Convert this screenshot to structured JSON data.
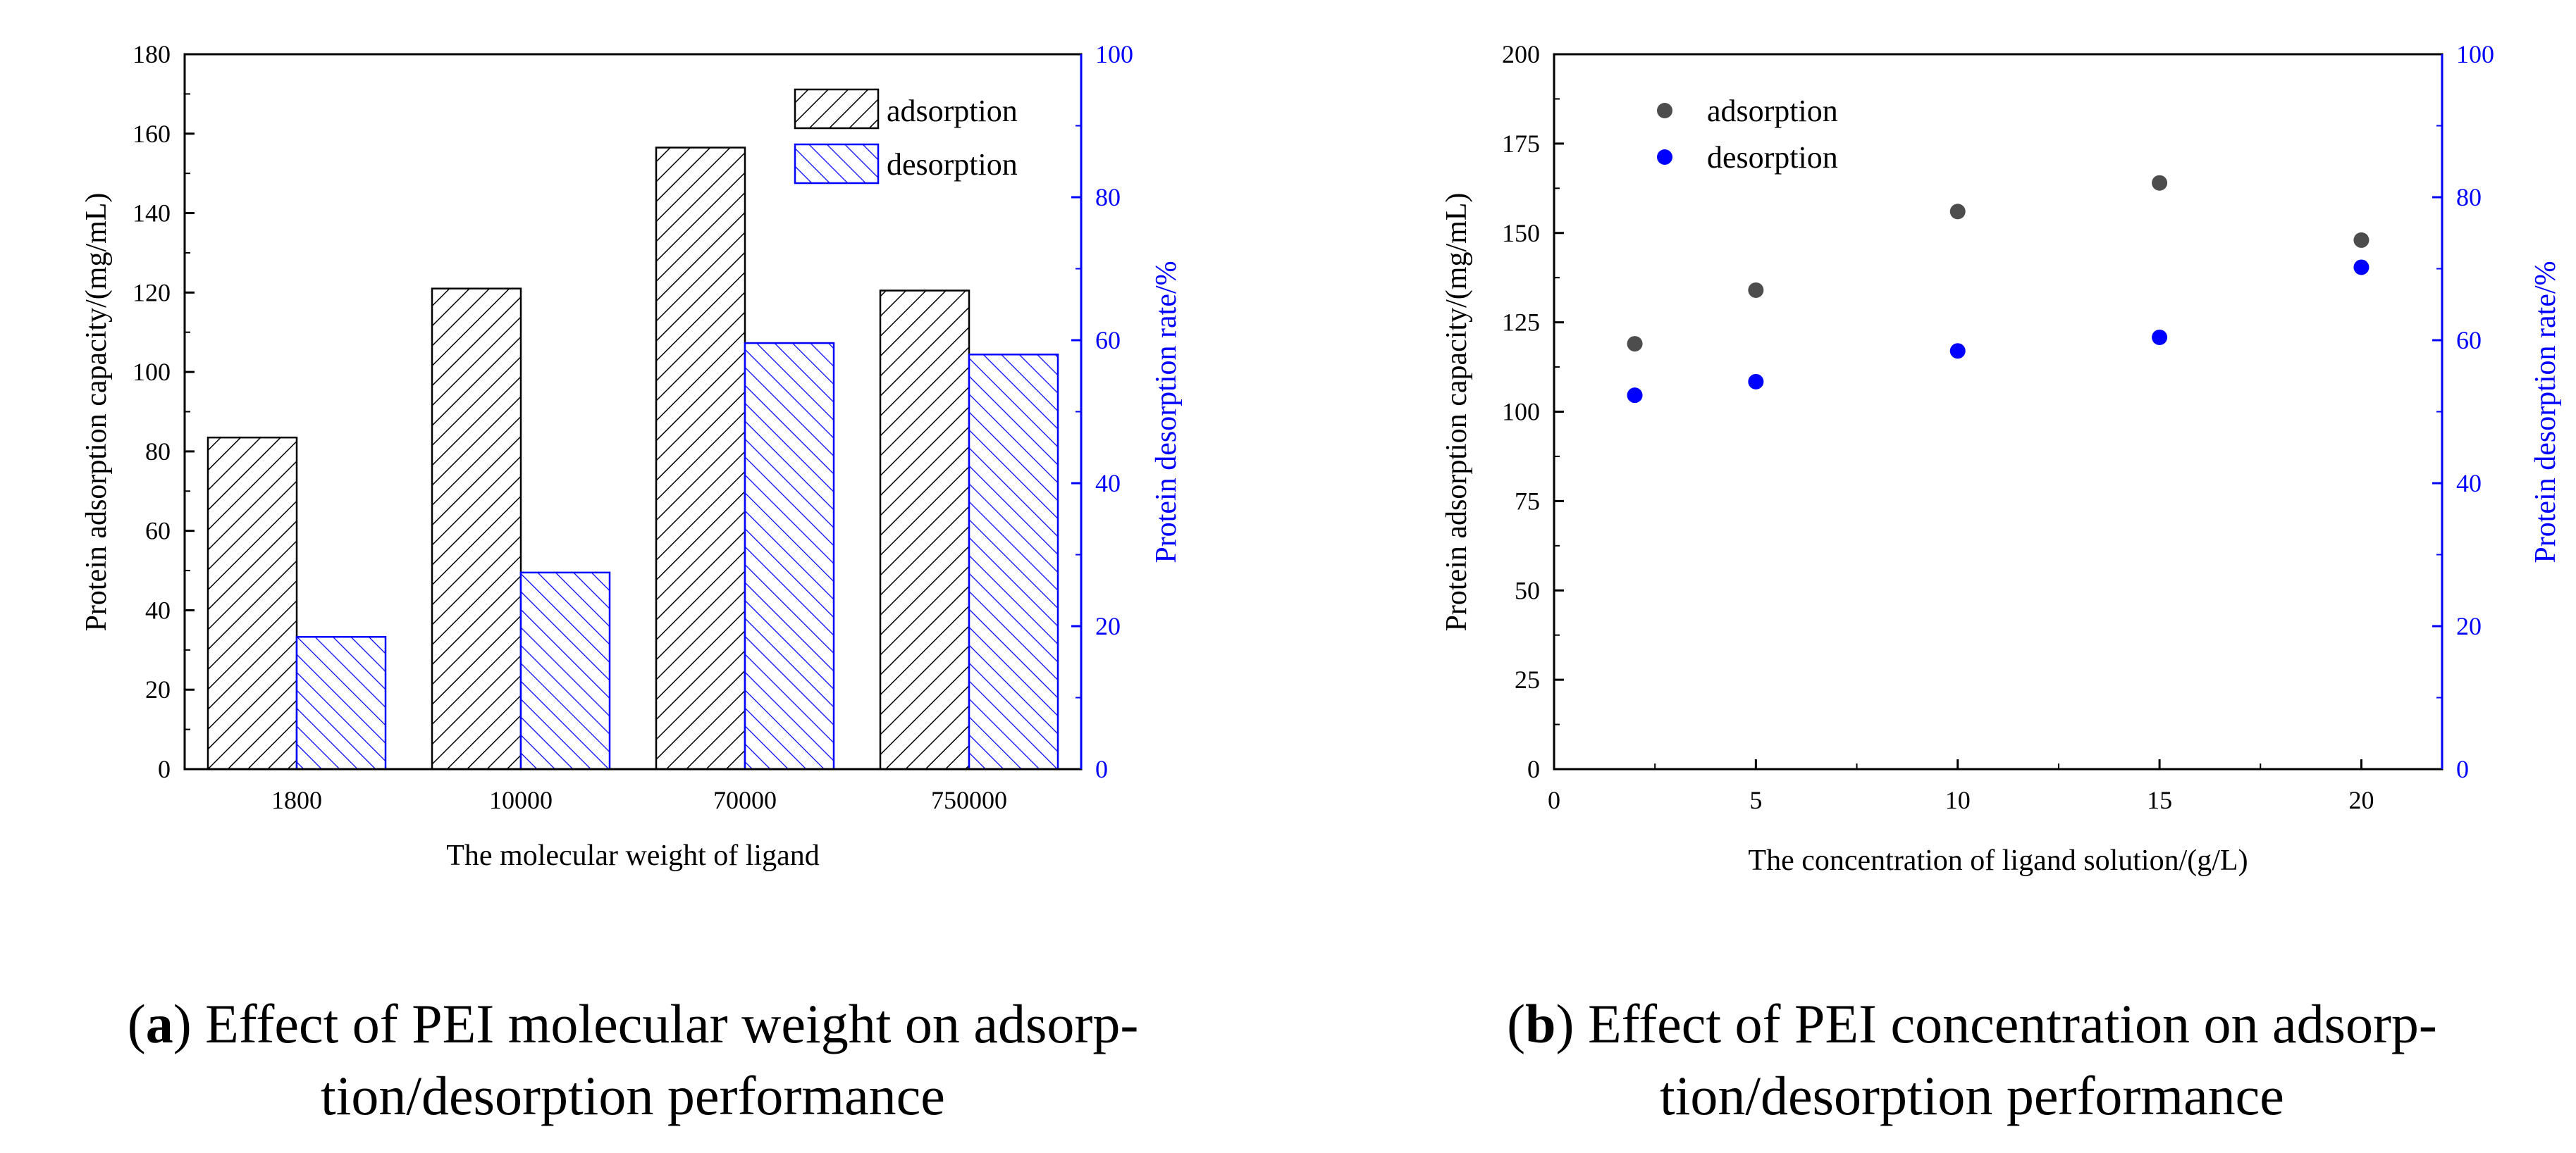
{
  "chart_data": [
    {
      "type": "bar",
      "panel": "a",
      "categories": [
        "1800",
        "10000",
        "70000",
        "750000"
      ],
      "series": [
        {
          "name": "adsorption",
          "axis": "left",
          "values": [
            83.5,
            121,
            156.5,
            120.5
          ],
          "color": "#000000"
        },
        {
          "name": "desorption",
          "axis": "right",
          "values": [
            18.5,
            27.5,
            59.6,
            58
          ],
          "color": "#0000ff"
        }
      ],
      "xlabel": "The molecular weight of ligand",
      "ylabel": "Protein adsorption capacity/(mg/mL)",
      "y2label": "Protein desorption rate/%",
      "ylim": [
        0,
        180
      ],
      "y2lim": [
        0,
        100
      ],
      "yticks": [
        "0",
        "20",
        "40",
        "60",
        "80",
        "100",
        "120",
        "140",
        "160",
        "180"
      ],
      "y2ticks": [
        "0",
        "20",
        "40",
        "60",
        "80",
        "100"
      ],
      "legend_position": "top-right",
      "caption_letter": "a",
      "caption_lines": [
        ") Effect of PEI molecular weight on adsorp-",
        "tion/desorption performance"
      ]
    },
    {
      "type": "scatter",
      "panel": "b",
      "x": [
        2,
        5,
        10,
        15,
        20
      ],
      "series": [
        {
          "name": "adsorption",
          "axis": "left",
          "values": [
            119,
            134,
            156,
            164,
            148
          ],
          "color": "#4d4d4d"
        },
        {
          "name": "desorption",
          "axis": "right",
          "values": [
            52.3,
            54.2,
            58.5,
            60.4,
            70.2
          ],
          "color": "#0000ff"
        }
      ],
      "xlabel": "The concentration of ligand solution/(g/L)",
      "ylabel": "Protein adsorption capacity/(mg/mL)",
      "y2label": "Protein desorption rate/%",
      "xlim": [
        0,
        22
      ],
      "ylim": [
        0,
        200
      ],
      "y2lim": [
        0,
        100
      ],
      "xticks": [
        "0",
        "5",
        "10",
        "15",
        "20"
      ],
      "yticks": [
        "0",
        "25",
        "50",
        "75",
        "100",
        "125",
        "150",
        "175",
        "200"
      ],
      "y2ticks": [
        "0",
        "20",
        "40",
        "60",
        "80",
        "100"
      ],
      "legend_position": "top-left",
      "caption_letter": "b",
      "caption_lines": [
        ") Effect of PEI concentration on adsorp-",
        "tion/desorption performance"
      ]
    }
  ],
  "colors": {
    "left_axis": "#000000",
    "right_axis": "#0000ff",
    "adsorption_point": "#4d4d4d",
    "desorption_point": "#0000ff"
  }
}
